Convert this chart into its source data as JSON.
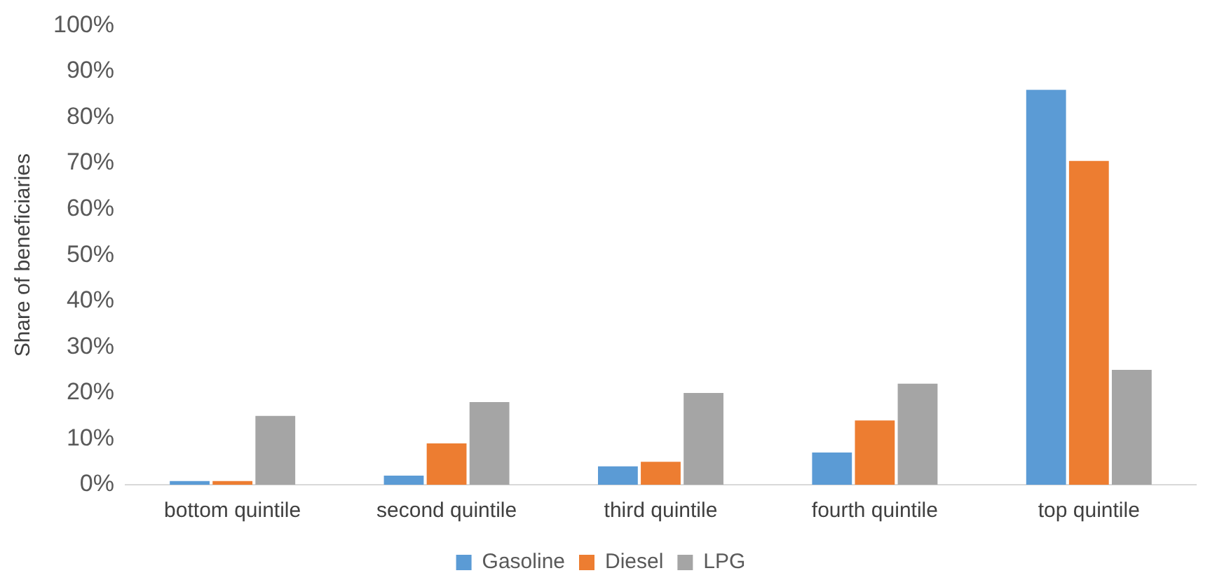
{
  "chart_data": {
    "type": "bar",
    "ylabel": "Share of beneficiaries",
    "categories": [
      "bottom quintile",
      "second quintile",
      "third quintile",
      "fourth quintile",
      "top quintile"
    ],
    "series": [
      {
        "name": "Gasoline",
        "color": "#5b9bd5",
        "values": [
          0.8,
          2,
          4,
          7,
          86
        ]
      },
      {
        "name": "Diesel",
        "color": "#ed7d31",
        "values": [
          0.8,
          9,
          5,
          14,
          70.5
        ]
      },
      {
        "name": "LPG",
        "color": "#a5a5a5",
        "values": [
          15,
          18,
          20,
          22,
          25
        ]
      }
    ],
    "ylim": [
      0,
      100
    ],
    "yticks": [
      {
        "value": 0,
        "label": "0%"
      },
      {
        "value": 10,
        "label": "10%"
      },
      {
        "value": 20,
        "label": "20%"
      },
      {
        "value": 30,
        "label": "30%"
      },
      {
        "value": 40,
        "label": "40%"
      },
      {
        "value": 50,
        "label": "50%"
      },
      {
        "value": 60,
        "label": "60%"
      },
      {
        "value": 70,
        "label": "70%"
      },
      {
        "value": 80,
        "label": "80%"
      },
      {
        "value": 90,
        "label": "90%"
      },
      {
        "value": 100,
        "label": "100%"
      }
    ],
    "grid": false,
    "legend": "bottom"
  }
}
